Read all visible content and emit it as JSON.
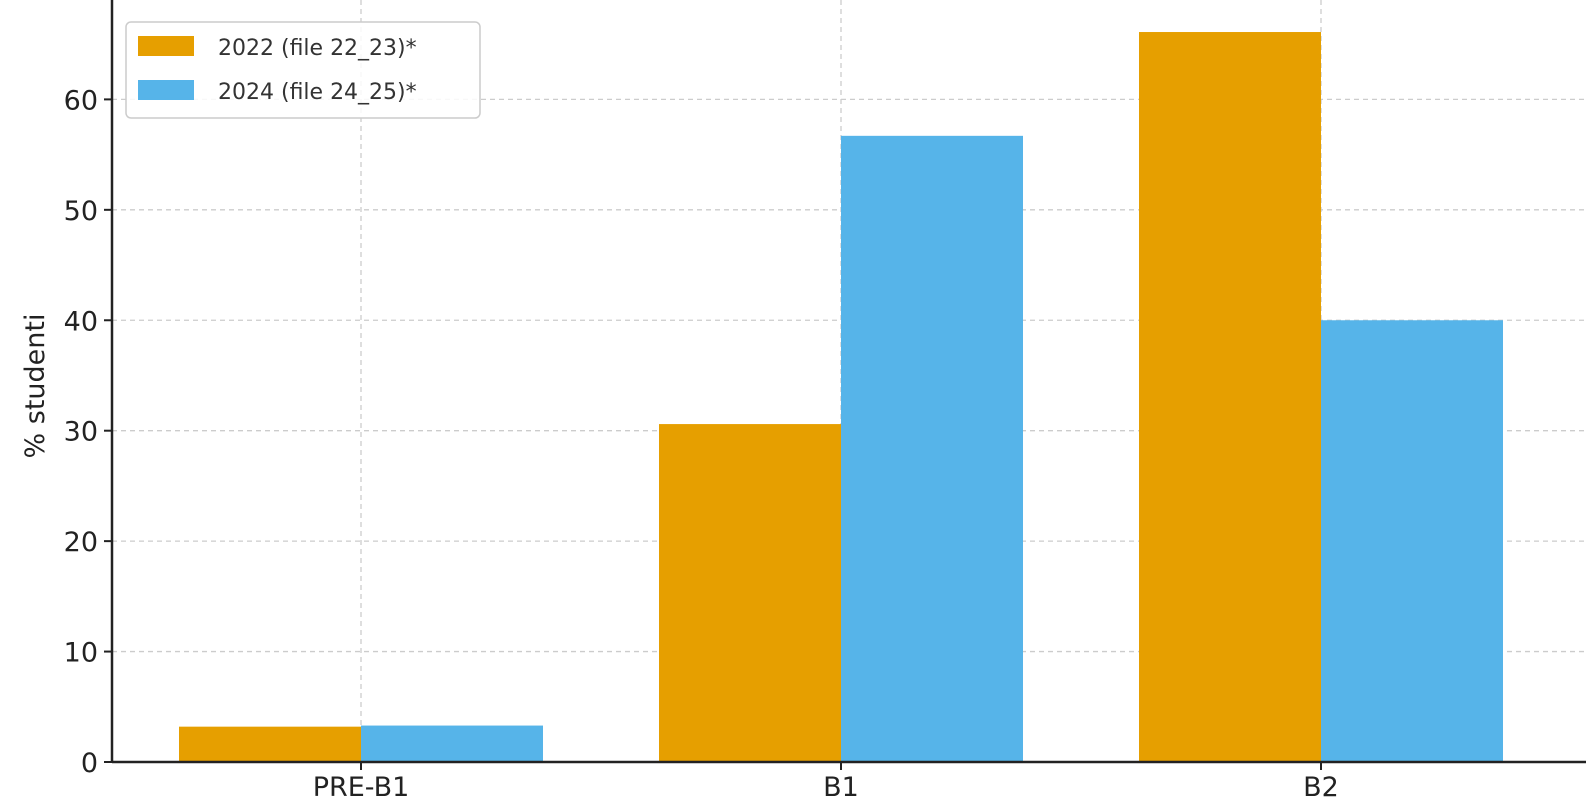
{
  "chart_data": {
    "type": "bar",
    "categories": [
      "PRE-B1",
      "B1",
      "B2"
    ],
    "series": [
      {
        "name": "2022 (file 22_23)*",
        "color": "#E69F00",
        "values": [
          3.2,
          30.6,
          66.1
        ]
      },
      {
        "name": "2024 (file 24_25)*",
        "color": "#56B4E9",
        "values": [
          3.3,
          56.7,
          40.0
        ]
      }
    ],
    "title": "",
    "xlabel": "",
    "ylabel": "% studenti",
    "ylim": [
      0,
      69
    ],
    "yticks": [
      0,
      10,
      20,
      30,
      40,
      50,
      60
    ],
    "grid": true,
    "legend_position": "top-left"
  }
}
